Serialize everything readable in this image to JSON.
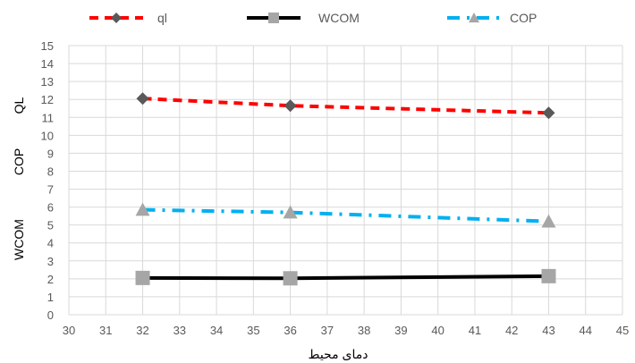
{
  "chart_data": {
    "type": "line",
    "title": "",
    "xlabel": "دمای محیط",
    "ylabels": [
      "QL",
      "COP",
      "WCOM"
    ],
    "xlim": [
      30,
      45
    ],
    "ylim": [
      0,
      15
    ],
    "xticks": [
      30,
      31,
      32,
      33,
      34,
      35,
      36,
      37,
      38,
      39,
      40,
      41,
      42,
      43,
      44,
      45
    ],
    "yticks": [
      0,
      1,
      2,
      3,
      4,
      5,
      6,
      7,
      8,
      9,
      10,
      11,
      12,
      13,
      14,
      15
    ],
    "grid": true,
    "legend_position": "top",
    "series": [
      {
        "name": "ql",
        "x": [
          32,
          36,
          43
        ],
        "y": [
          12.05,
          11.65,
          11.25
        ],
        "line_color": "#ff0000",
        "marker_color": "#595959",
        "marker": "diamond",
        "dash": "dashed"
      },
      {
        "name": "WCOM",
        "x": [
          32,
          36,
          43
        ],
        "y": [
          2.05,
          2.03,
          2.15
        ],
        "line_color": "#000000",
        "marker_color": "#a6a6a6",
        "marker": "square",
        "dash": "solid"
      },
      {
        "name": "COP",
        "x": [
          32,
          36,
          43
        ],
        "y": [
          5.85,
          5.7,
          5.2
        ],
        "line_color": "#00b0f0",
        "marker_color": "#a6a6a6",
        "marker": "triangle",
        "dash": "dashdot"
      }
    ]
  }
}
